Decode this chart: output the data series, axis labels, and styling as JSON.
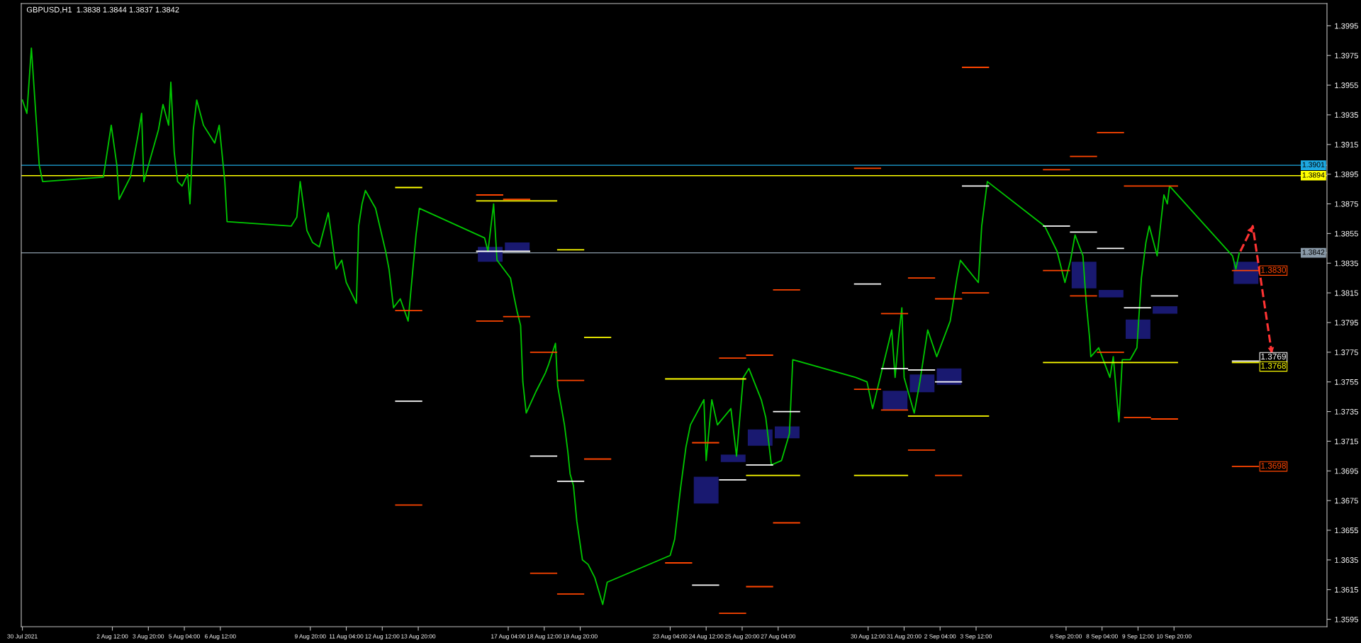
{
  "chart_data": {
    "type": "line",
    "title": "GBPUSD,H1  1.3838 1.3844 1.3837 1.3842",
    "xlim": [
      "2021-07-30T03:00",
      "2021-09-16T12:00"
    ],
    "ylim": [
      1.359,
      1.401
    ],
    "xticks": [
      {
        "value": "2021-07-30T04:00",
        "label": "30 Jul 2021"
      },
      {
        "value": "2021-08-02T12:00",
        "label": "2 Aug 12:00"
      },
      {
        "value": "2021-08-03T20:00",
        "label": "3 Aug 20:00"
      },
      {
        "value": "2021-08-05T04:00",
        "label": "5 Aug 04:00"
      },
      {
        "value": "2021-08-06T12:00",
        "label": "6 Aug 12:00"
      },
      {
        "value": "2021-08-09T20:00",
        "label": "9 Aug 20:00"
      },
      {
        "value": "2021-08-11T04:00",
        "label": "11 Aug 04:00"
      },
      {
        "value": "2021-08-12T12:00",
        "label": "12 Aug 12:00"
      },
      {
        "value": "2021-08-13T20:00",
        "label": "13 Aug 20:00"
      },
      {
        "value": "2021-08-17T04:00",
        "label": "17 Aug 04:00"
      },
      {
        "value": "2021-08-18T12:00",
        "label": "18 Aug 12:00"
      },
      {
        "value": "2021-08-19T20:00",
        "label": "19 Aug 20:00"
      },
      {
        "value": "2021-08-23T04:00",
        "label": "23 Aug 04:00"
      },
      {
        "value": "2021-08-24T12:00",
        "label": "24 Aug 12:00"
      },
      {
        "value": "2021-08-25T20:00",
        "label": "25 Aug 20:00"
      },
      {
        "value": "2021-08-27T04:00",
        "label": "27 Aug 04:00"
      },
      {
        "value": "2021-08-30T12:00",
        "label": "30 Aug 12:00"
      },
      {
        "value": "2021-08-31T20:00",
        "label": "31 Aug 20:00"
      },
      {
        "value": "2021-09-02T04:00",
        "label": "2 Sep 04:00"
      },
      {
        "value": "2021-09-03T12:00",
        "label": "3 Sep 12:00"
      },
      {
        "value": "2021-09-06T20:00",
        "label": "6 Sep 20:00"
      },
      {
        "value": "2021-09-08T04:00",
        "label": "8 Sep 04:00"
      },
      {
        "value": "2021-09-09T12:00",
        "label": "9 Sep 12:00"
      },
      {
        "value": "2021-09-10T20:00",
        "label": "10 Sep 20:00"
      }
    ],
    "yticks": [
      1.3595,
      1.3615,
      1.3635,
      1.3655,
      1.3675,
      1.3695,
      1.3715,
      1.3735,
      1.3755,
      1.3775,
      1.3795,
      1.3815,
      1.3835,
      1.3855,
      1.3875,
      1.3895,
      1.3915,
      1.3935,
      1.3955,
      1.3975,
      1.3995
    ],
    "grid": false,
    "legend": false,
    "ref_lines": [
      {
        "axis": "y",
        "value": 1.3901,
        "label": "1.3901",
        "color": "#1ea8e0"
      },
      {
        "axis": "y",
        "value": 1.3894,
        "label": "1.3894",
        "color": "#ffff00"
      },
      {
        "axis": "y",
        "value": 1.3842,
        "label": "1.3842",
        "color": "#8a9aa8"
      }
    ],
    "series": [
      {
        "color": "#00c800",
        "x": [
          "2021-07-30T04:00",
          "2021-07-30T08:00",
          "2021-07-30T11:00",
          "2021-07-30T12:00",
          "2021-07-30T19:00",
          "2021-07-30T22:00",
          "2021-08-02T04:00",
          "2021-08-02T11:00",
          "2021-08-02T16:00",
          "2021-08-02T18:00",
          "2021-08-03T04:00",
          "2021-08-03T11:00",
          "2021-08-03T14:00",
          "2021-08-03T16:00",
          "2021-08-04T05:00",
          "2021-08-04T09:00",
          "2021-08-04T14:00",
          "2021-08-04T16:00",
          "2021-08-04T19:00",
          "2021-08-04T22:00",
          "2021-08-05T02:00",
          "2021-08-05T07:00",
          "2021-08-05T09:00",
          "2021-08-05T12:00",
          "2021-08-05T15:00",
          "2021-08-05T21:00",
          "2021-08-06T07:00",
          "2021-08-06T11:00",
          "2021-08-06T16:00",
          "2021-08-06T18:00",
          "2021-08-09T03:00",
          "2021-08-09T08:00",
          "2021-08-09T11:00",
          "2021-08-09T17:00",
          "2021-08-09T22:00",
          "2021-08-10T04:00",
          "2021-08-10T12:00",
          "2021-08-10T19:00",
          "2021-08-11T00:00",
          "2021-08-11T04:00",
          "2021-08-11T13:00",
          "2021-08-11T15:00",
          "2021-08-11T18:00",
          "2021-08-11T21:00",
          "2021-08-12T06:00",
          "2021-08-12T15:00",
          "2021-08-12T18:00",
          "2021-08-12T22:00",
          "2021-08-13T04:00",
          "2021-08-13T11:00",
          "2021-08-13T18:00",
          "2021-08-13T21:00",
          "2021-08-16T07:00",
          "2021-08-16T10:00",
          "2021-08-16T15:00",
          "2021-08-16T18:00",
          "2021-08-17T06:00",
          "2021-08-17T09:00",
          "2021-08-17T12:00",
          "2021-08-17T15:00",
          "2021-08-17T17:00",
          "2021-08-17T20:00",
          "2021-08-18T05:00",
          "2021-08-18T13:00",
          "2021-08-18T16:00",
          "2021-08-18T22:00",
          "2021-08-19T00:00",
          "2021-08-19T06:00",
          "2021-08-19T09:00",
          "2021-08-19T11:00",
          "2021-08-19T14:00",
          "2021-08-19T17:00",
          "2021-08-19T22:00",
          "2021-08-20T03:00",
          "2021-08-20T09:00",
          "2021-08-20T16:00",
          "2021-08-20T20:00",
          "2021-08-23T04:00",
          "2021-08-23T08:00",
          "2021-08-23T13:00",
          "2021-08-23T18:00",
          "2021-08-23T22:00",
          "2021-08-24T10:00",
          "2021-08-24T12:00",
          "2021-08-24T17:00",
          "2021-08-24T22:00",
          "2021-08-25T10:00",
          "2021-08-25T15:00",
          "2021-08-25T21:00",
          "2021-08-26T02:00",
          "2021-08-26T13:00",
          "2021-08-26T17:00",
          "2021-08-26T22:00",
          "2021-08-27T07:00",
          "2021-08-27T14:00",
          "2021-08-27T17:00",
          "2021-08-30T01:00",
          "2021-08-30T11:00",
          "2021-08-30T16:00",
          "2021-08-31T09:00",
          "2021-08-31T12:00",
          "2021-08-31T15:00",
          "2021-08-31T18:00",
          "2021-08-31T20:00",
          "2021-09-01T05:00",
          "2021-09-01T10:00",
          "2021-09-01T17:00",
          "2021-09-02T01:00",
          "2021-09-02T13:00",
          "2021-09-02T19:00",
          "2021-09-02T22:00",
          "2021-09-03T14:00",
          "2021-09-03T17:00",
          "2021-09-03T20:00",
          "2021-09-03T22:00",
          "2021-09-06T01:00",
          "2021-09-06T12:00",
          "2021-09-06T19:00",
          "2021-09-07T00:00",
          "2021-09-07T04:00",
          "2021-09-07T11:00",
          "2021-09-07T14:00",
          "2021-09-07T17:00",
          "2021-09-07T18:00",
          "2021-09-08T01:00",
          "2021-09-08T11:00",
          "2021-09-08T14:00",
          "2021-09-08T19:00",
          "2021-09-08T22:00",
          "2021-09-09T05:00",
          "2021-09-09T11:00",
          "2021-09-09T15:00",
          "2021-09-09T19:00",
          "2021-09-09T22:00",
          "2021-09-10T05:00",
          "2021-09-10T11:00",
          "2021-09-10T14:00",
          "2021-09-10T16:00",
          "2021-09-13T00:00",
          "2021-09-13T03:00",
          "2021-09-13T06:00"
        ],
        "values": [
          1.3945,
          1.3936,
          1.3969,
          1.398,
          1.3901,
          1.389,
          1.3893,
          1.3928,
          1.3901,
          1.3878,
          1.3893,
          1.3922,
          1.3936,
          1.389,
          1.3925,
          1.3942,
          1.3928,
          1.3957,
          1.391,
          1.389,
          1.3887,
          1.3895,
          1.3875,
          1.3925,
          1.3945,
          1.3928,
          1.3916,
          1.3928,
          1.389,
          1.3863,
          1.386,
          1.3866,
          1.389,
          1.3857,
          1.3849,
          1.3846,
          1.3869,
          1.3831,
          1.3837,
          1.3822,
          1.3808,
          1.386,
          1.3875,
          1.3884,
          1.3872,
          1.3843,
          1.3831,
          1.3805,
          1.3811,
          1.3796,
          1.3854,
          1.3872,
          1.3852,
          1.3843,
          1.3875,
          1.3837,
          1.3825,
          1.3813,
          1.3802,
          1.3793,
          1.3755,
          1.3734,
          1.3749,
          1.3761,
          1.3767,
          1.3781,
          1.3752,
          1.3726,
          1.3708,
          1.3693,
          1.3685,
          1.3661,
          1.3635,
          1.3632,
          1.3623,
          1.3605,
          1.362,
          1.3638,
          1.3649,
          1.3682,
          1.3711,
          1.3726,
          1.3743,
          1.3702,
          1.3743,
          1.3726,
          1.3737,
          1.3705,
          1.3758,
          1.3764,
          1.3743,
          1.3731,
          1.3699,
          1.3702,
          1.372,
          1.377,
          1.3758,
          1.3755,
          1.3737,
          1.379,
          1.3758,
          1.3784,
          1.3805,
          1.3758,
          1.3734,
          1.3755,
          1.379,
          1.3772,
          1.3796,
          1.3825,
          1.3837,
          1.3822,
          1.386,
          1.3878,
          1.389,
          1.386,
          1.3843,
          1.3822,
          1.3837,
          1.3854,
          1.384,
          1.3808,
          1.3784,
          1.3772,
          1.3778,
          1.3758,
          1.3772,
          1.3728,
          1.377,
          1.377,
          1.3778,
          1.3825,
          1.3849,
          1.386,
          1.384,
          1.3881,
          1.3875,
          1.3887,
          1.384,
          1.3831,
          1.3842
        ]
      },
      {
        "color": "#ff4500",
        "x": [
          "2021-08-13T00:00",
          "2021-08-13T23:00",
          null,
          "2021-08-16T00:00",
          "2021-08-16T23:00",
          null,
          "2021-08-17T00:00",
          "2021-08-17T23:00",
          null,
          "2021-08-18T00:00",
          "2021-08-18T23:00",
          null,
          "2021-08-19T00:00",
          "2021-08-19T23:00",
          null,
          "2021-08-20T00:00",
          "2021-08-20T23:00",
          null,
          "2021-08-23T00:00",
          "2021-08-23T23:00",
          null,
          "2021-08-24T00:00",
          "2021-08-24T23:00",
          null,
          "2021-08-25T00:00",
          "2021-08-25T23:00",
          null,
          "2021-08-26T00:00",
          "2021-08-26T23:00",
          null,
          "2021-08-27T00:00",
          "2021-08-27T23:00",
          null,
          "2021-08-30T00:00",
          "2021-08-30T23:00",
          null,
          "2021-08-31T00:00",
          "2021-08-31T23:00",
          null,
          "2021-09-01T00:00",
          "2021-09-01T23:00",
          null,
          "2021-09-02T00:00",
          "2021-09-02T23:00",
          null,
          "2021-09-03T00:00",
          "2021-09-03T23:00",
          null,
          "2021-09-06T00:00",
          "2021-09-06T23:00",
          null,
          "2021-09-07T00:00",
          "2021-09-07T23:00",
          null,
          "2021-09-08T00:00",
          "2021-09-08T23:00",
          null,
          "2021-09-09T00:00",
          "2021-09-09T23:00",
          null,
          "2021-09-10T00:00",
          "2021-09-10T23:00",
          null,
          "2021-09-13T00:00",
          "2021-09-13T23:00"
        ],
        "values": [
          1.3803,
          1.3803,
          null,
          1.3881,
          1.3881,
          null,
          1.3878,
          1.3878,
          null,
          1.3775,
          1.3775,
          null,
          1.3756,
          1.3756,
          null,
          1.3703,
          1.3703,
          null,
          1.3633,
          1.3633,
          null,
          1.3714,
          1.3714,
          null,
          1.3771,
          1.3771,
          null,
          1.3773,
          1.3773,
          null,
          1.3817,
          1.3817,
          null,
          1.3899,
          1.3899,
          null,
          1.3801,
          1.3801,
          null,
          1.3825,
          1.3825,
          null,
          1.3811,
          1.3811,
          null,
          1.3967,
          1.3967,
          null,
          1.3898,
          1.3898,
          null,
          1.3907,
          1.3907,
          null,
          1.3923,
          1.3923,
          null,
          1.3887,
          1.3887,
          null,
          1.3887,
          1.3887,
          null,
          1.383,
          1.383
        ],
        "value_labels": [
          null,
          null,
          null,
          null,
          null,
          null,
          null,
          null,
          null,
          null,
          null,
          null,
          null,
          null,
          null,
          null,
          null,
          null,
          null,
          null,
          null,
          null,
          null,
          null,
          null,
          null,
          null,
          null,
          null,
          null,
          null,
          null,
          null,
          null,
          null,
          null,
          null,
          null,
          null,
          null,
          null,
          null,
          null,
          null,
          null,
          null,
          null,
          null,
          null,
          null,
          null,
          null,
          null,
          null,
          null,
          null,
          null,
          null,
          null,
          null,
          null,
          null,
          null,
          null,
          "1.3830"
        ]
      },
      {
        "color": "#ff4500",
        "x": [
          "2021-08-13T00:00",
          "2021-08-13T23:00",
          null,
          "2021-08-16T00:00",
          "2021-08-16T23:00",
          null,
          "2021-08-17T00:00",
          "2021-08-17T23:00",
          null,
          "2021-08-18T00:00",
          "2021-08-18T23:00",
          null,
          "2021-08-19T00:00",
          "2021-08-19T23:00",
          null,
          "2021-08-25T00:00",
          "2021-08-25T23:00",
          null,
          "2021-08-26T00:00",
          "2021-08-26T23:00",
          null,
          "2021-08-27T00:00",
          "2021-08-27T23:00",
          null,
          "2021-08-30T00:00",
          "2021-08-30T23:00",
          null,
          "2021-08-31T00:00",
          "2021-08-31T23:00",
          null,
          "2021-09-01T00:00",
          "2021-09-01T23:00",
          null,
          "2021-09-02T00:00",
          "2021-09-02T23:00",
          null,
          "2021-09-03T00:00",
          "2021-09-03T23:00",
          null,
          "2021-09-06T00:00",
          "2021-09-06T23:00",
          null,
          "2021-09-07T00:00",
          "2021-09-07T23:00",
          null,
          "2021-09-08T00:00",
          "2021-09-08T23:00",
          null,
          "2021-09-09T00:00",
          "2021-09-09T23:00",
          null,
          "2021-09-10T00:00",
          "2021-09-10T23:00",
          null,
          "2021-09-13T00:00",
          "2021-09-13T23:00"
        ],
        "values": [
          1.3672,
          1.3672,
          null,
          1.3796,
          1.3796,
          null,
          1.3799,
          1.3799,
          null,
          1.3626,
          1.3626,
          null,
          1.3612,
          1.3612,
          null,
          1.3599,
          1.3599,
          null,
          1.3617,
          1.3617,
          null,
          1.366,
          1.366,
          null,
          1.375,
          1.375,
          null,
          1.3736,
          1.3736,
          null,
          1.3709,
          1.3709,
          null,
          1.3692,
          1.3692,
          null,
          1.3815,
          1.3815,
          null,
          1.383,
          1.383,
          null,
          1.3813,
          1.3813,
          null,
          1.3775,
          1.3775,
          null,
          1.3731,
          1.3731,
          null,
          1.373,
          1.373,
          null,
          1.3698,
          1.3698
        ],
        "value_labels": [
          null,
          null,
          null,
          null,
          null,
          null,
          null,
          null,
          null,
          null,
          null,
          null,
          null,
          null,
          null,
          null,
          null,
          null,
          null,
          null,
          null,
          null,
          null,
          null,
          null,
          null,
          null,
          null,
          null,
          null,
          null,
          null,
          null,
          null,
          null,
          null,
          null,
          null,
          null,
          null,
          null,
          null,
          null,
          null,
          null,
          null,
          null,
          null,
          null,
          null,
          null,
          null,
          null,
          null,
          null,
          "1.3698"
        ]
      },
      {
        "color": "#ffffff",
        "x": [
          "2021-08-13T00:00",
          "2021-08-13T23:00",
          null,
          "2021-08-16T00:00",
          "2021-08-16T23:00",
          null,
          "2021-08-17T00:00",
          "2021-08-17T23:00",
          null,
          "2021-08-18T00:00",
          "2021-08-18T23:00",
          null,
          "2021-08-19T00:00",
          "2021-08-19T23:00",
          null,
          "2021-08-24T00:00",
          "2021-08-24T23:00",
          null,
          "2021-08-25T00:00",
          "2021-08-25T23:00",
          null,
          "2021-08-26T00:00",
          "2021-08-26T23:00",
          null,
          "2021-08-27T00:00",
          "2021-08-27T23:00",
          null,
          "2021-08-30T00:00",
          "2021-08-30T23:00",
          null,
          "2021-08-31T00:00",
          "2021-08-31T23:00",
          null,
          "2021-09-01T00:00",
          "2021-09-01T23:00",
          null,
          "2021-09-02T00:00",
          "2021-09-02T23:00",
          null,
          "2021-09-03T00:00",
          "2021-09-03T23:00",
          null,
          "2021-09-06T00:00",
          "2021-09-06T23:00",
          null,
          "2021-09-07T00:00",
          "2021-09-07T23:00",
          null,
          "2021-09-08T00:00",
          "2021-09-08T23:00",
          null,
          "2021-09-09T00:00",
          "2021-09-09T23:00",
          null,
          "2021-09-10T00:00",
          "2021-09-10T23:00"
        ],
        "values": [
          1.3742,
          1.3742,
          null,
          1.3843,
          1.3843,
          null,
          1.3843,
          1.3843,
          null,
          1.3705,
          1.3705,
          null,
          1.3688,
          1.3688,
          null,
          1.3618,
          1.3618,
          null,
          1.3689,
          1.3689,
          null,
          1.3699,
          1.3699,
          null,
          1.3735,
          1.3735,
          null,
          1.3821,
          1.3821,
          null,
          1.3764,
          1.3764,
          null,
          1.3763,
          1.3763,
          null,
          1.3755,
          1.3755,
          null,
          1.3887,
          1.3887,
          null,
          1.386,
          1.386,
          null,
          1.3856,
          1.3856,
          null,
          1.3845,
          1.3845,
          null,
          1.3805,
          1.3805,
          null,
          1.3813,
          1.3813
        ]
      },
      {
        "color": "#ffffff",
        "x": [
          "2021-09-13T00:00",
          "2021-09-13T23:00"
        ],
        "values": [
          1.3769,
          1.3769
        ],
        "value_labels": [
          null,
          "1.3769"
        ]
      },
      {
        "color": "#ffff00",
        "x": [
          "2021-08-13T00:00",
          "2021-08-13T23:00",
          null,
          "2021-08-16T00:00",
          "2021-08-16T23:00",
          null,
          "2021-08-17T00:00",
          "2021-08-17T23:00",
          null,
          "2021-08-18T00:00",
          "2021-08-18T23:00",
          null,
          "2021-08-19T00:00",
          "2021-08-19T23:00",
          null,
          "2021-08-20T00:00",
          "2021-08-20T23:00",
          null,
          "2021-08-23T00:00",
          "2021-08-23T23:00",
          null,
          "2021-08-24T00:00",
          "2021-08-24T23:00",
          null,
          "2021-08-25T00:00",
          "2021-08-25T23:00",
          null,
          "2021-08-26T00:00",
          "2021-08-26T23:00",
          null,
          "2021-08-27T00:00",
          "2021-08-27T23:00",
          null,
          "2021-08-30T00:00",
          "2021-08-30T23:00",
          null,
          "2021-08-31T00:00",
          "2021-08-31T23:00",
          null,
          "2021-09-01T00:00",
          "2021-09-01T23:00",
          null,
          "2021-09-02T00:00",
          "2021-09-02T23:00",
          null,
          "2021-09-03T00:00",
          "2021-09-03T23:00",
          null,
          "2021-09-06T00:00",
          "2021-09-06T23:00",
          null,
          "2021-09-07T00:00",
          "2021-09-07T23:00",
          null,
          "2021-09-08T00:00",
          "2021-09-08T23:00",
          null,
          "2021-09-09T00:00",
          "2021-09-09T23:00",
          null,
          "2021-09-10T00:00",
          "2021-09-10T23:00",
          null,
          "2021-09-13T00:00",
          "2021-09-13T23:00"
        ],
        "values": [
          1.3886,
          1.3886,
          null,
          1.3877,
          1.3877,
          null,
          1.3877,
          1.3877,
          null,
          1.3877,
          1.3877,
          null,
          1.3844,
          1.3844,
          null,
          1.3785,
          1.3785,
          null,
          1.3757,
          1.3757,
          null,
          1.3757,
          1.3757,
          null,
          1.3757,
          1.3757,
          null,
          1.3692,
          1.3692,
          null,
          1.3692,
          1.3692,
          null,
          1.3692,
          1.3692,
          null,
          1.3692,
          1.3692,
          null,
          1.3732,
          1.3732,
          null,
          1.3732,
          1.3732,
          null,
          1.3732,
          1.3732,
          null,
          1.3768,
          1.3768,
          null,
          1.3768,
          1.3768,
          null,
          1.3768,
          1.3768,
          null,
          1.3768,
          1.3768,
          null,
          1.3768,
          1.3768,
          null,
          1.3768,
          1.3768
        ],
        "value_labels": [
          null,
          null,
          null,
          null,
          null,
          null,
          null,
          null,
          null,
          null,
          null,
          null,
          null,
          null,
          null,
          null,
          null,
          null,
          null,
          null,
          null,
          null,
          null,
          null,
          null,
          null,
          null,
          null,
          null,
          null,
          null,
          null,
          null,
          null,
          null,
          null,
          null,
          null,
          null,
          null,
          null,
          null,
          null,
          null,
          null,
          null,
          null,
          null,
          null,
          null,
          null,
          null,
          null,
          null,
          null,
          null,
          null,
          null,
          null,
          null,
          null,
          null,
          null,
          null,
          "1.3768"
        ]
      },
      {
        "type": "bar",
        "color": "#191970",
        "x": [
          "2021-08-16T12:00",
          "2021-08-17T12:00",
          "2021-08-24T12:00",
          "2021-08-25T12:00",
          "2021-08-26T12:00",
          "2021-08-27T12:00",
          "2021-08-31T12:00",
          "2021-09-01T12:00",
          "2021-09-02T12:00",
          "2021-09-07T12:00",
          "2021-09-08T12:00",
          "2021-09-09T12:00",
          "2021-09-10T12:00",
          "2021-09-13T12:00"
        ],
        "base": [
          1.3836,
          1.3843,
          1.3673,
          1.3701,
          1.3712,
          1.3717,
          1.3736,
          1.3748,
          1.3753,
          1.3818,
          1.3812,
          1.3784,
          1.3801,
          1.3821
        ],
        "values": [
          0.001,
          0.0006,
          0.0018,
          0.0005,
          0.0011,
          0.0008,
          0.0013,
          0.0012,
          0.0011,
          0.0018,
          0.0005,
          0.0013,
          0.0005,
          0.0015
        ]
      },
      {
        "color": "#ff3333",
        "line_style": "dashed",
        "x": [
          "2021-09-13T07:00",
          "2021-09-13T18:00",
          "2021-09-14T11:00"
        ],
        "values": [
          1.3843,
          1.386,
          1.3774
        ]
      }
    ]
  }
}
